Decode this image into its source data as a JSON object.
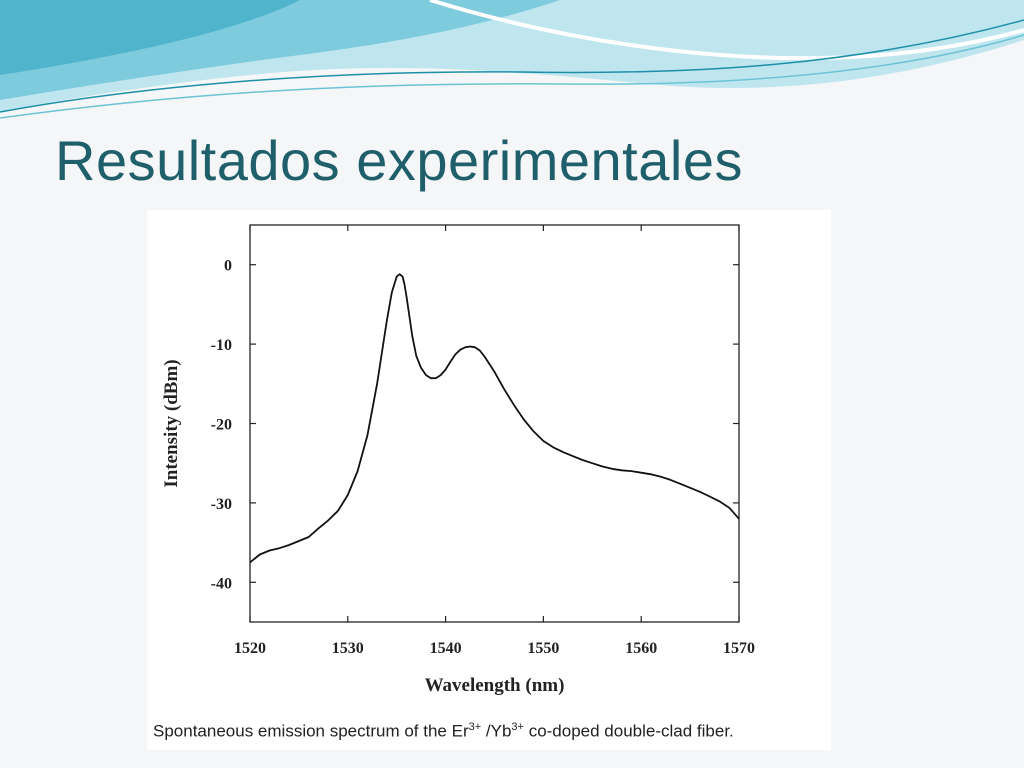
{
  "slide": {
    "title": "Resultados experimentales",
    "theme_colors": {
      "title": "#1f5f6b",
      "wave_light": "#bfe6ef",
      "wave_mid": "#6cc3d6",
      "wave_dark": "#1d8fa8"
    }
  },
  "chart_data": {
    "type": "line",
    "xlabel": "Wavelength (nm)",
    "ylabel": "Intensity (dBm)",
    "xlim": [
      1520,
      1570
    ],
    "ylim": [
      -45,
      5
    ],
    "x_ticks": [
      1520,
      1530,
      1540,
      1550,
      1560,
      1570
    ],
    "y_ticks": [
      0,
      -10,
      -20,
      -30,
      -40
    ],
    "grid": false,
    "series": [
      {
        "x": [
          1520,
          1521,
          1522,
          1523,
          1524,
          1525,
          1526,
          1527,
          1528,
          1529,
          1530,
          1531,
          1532,
          1533,
          1533.5,
          1534,
          1534.5,
          1535,
          1535.3,
          1535.6,
          1535.8,
          1536,
          1536.3,
          1536.6,
          1537,
          1537.5,
          1538,
          1538.5,
          1539,
          1539.5,
          1540,
          1540.5,
          1541,
          1541.5,
          1542,
          1542.5,
          1543,
          1543.5,
          1544,
          1545,
          1546,
          1547,
          1548,
          1549,
          1550,
          1551,
          1552,
          1553,
          1554,
          1555,
          1556,
          1557,
          1558,
          1559,
          1560,
          1561,
          1562,
          1563,
          1564,
          1565,
          1566,
          1567,
          1568,
          1569,
          1570
        ],
        "y": [
          -37.5,
          -36.5,
          -36,
          -35.7,
          -35.3,
          -34.8,
          -34.3,
          -33.2,
          -32.2,
          -31,
          -29,
          -26,
          -21.5,
          -15,
          -11,
          -7,
          -3.5,
          -1.5,
          -1.2,
          -1.5,
          -2.5,
          -4,
          -6.5,
          -9,
          -11.5,
          -13,
          -13.9,
          -14.3,
          -14.3,
          -13.9,
          -13.2,
          -12.2,
          -11.3,
          -10.7,
          -10.4,
          -10.3,
          -10.4,
          -10.8,
          -11.6,
          -13.5,
          -15.7,
          -17.7,
          -19.5,
          -21,
          -22.2,
          -23,
          -23.6,
          -24.1,
          -24.6,
          -25,
          -25.4,
          -25.7,
          -25.9,
          -26,
          -26.2,
          -26.4,
          -26.7,
          -27.1,
          -27.6,
          -28.1,
          -28.6,
          -29.2,
          -29.8,
          -30.6,
          -32
        ]
      }
    ]
  },
  "figure": {
    "caption_prefix": "Spontaneous emission spectrum of the Er",
    "er_sup": "3+",
    "caption_mid": " /Yb",
    "yb_sup": "3+",
    "caption_suffix": " co-doped double-clad fiber."
  }
}
